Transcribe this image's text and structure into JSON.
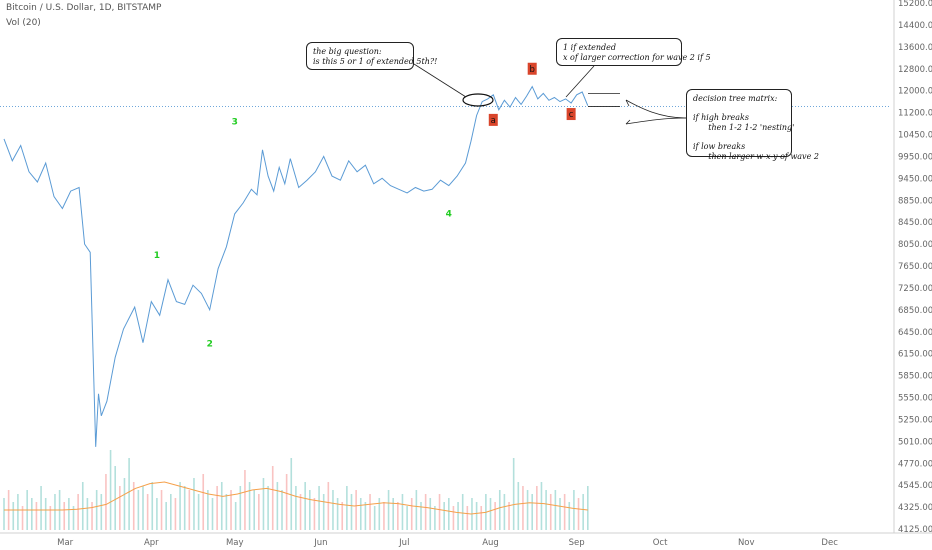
{
  "header": {
    "symbol_line": "Bitcoin / U.S. Dollar, 1D, BITSTAMP",
    "volume_line": "Vol (20)"
  },
  "annotations": {
    "big_question": "the big question:\nis this 5 or 1 of extended 5th?!",
    "extended_note": "1 if extended\nx of larger correction for wave 2 if 5",
    "decision_tree": "decision tree matrix:\n\nif high breaks\n      then 1-2 1-2 'nesting'\n\nif low breaks\n      then larger w-x-y of wave 2"
  },
  "colors": {
    "price_line": "#5b9bd5",
    "wave_label": "#22cc22",
    "abc_box": "#d9452b",
    "vol_up": "#26a69a",
    "vol_down": "#ef5350",
    "vol_ma": "#f5a04a",
    "axis_text": "#666666"
  },
  "chart_data": {
    "type": "line",
    "title": "Bitcoin / U.S. Dollar, 1D, BITSTAMP",
    "yaxis_ticks": [
      15200,
      14400,
      13600,
      12800,
      12000,
      11200,
      10450,
      9950,
      9450,
      8850,
      8450,
      8050,
      7650,
      7250,
      6850,
      6450,
      6150,
      5850,
      5550,
      5250,
      5010,
      4770,
      4545,
      4325,
      4125
    ],
    "xaxis_labels": [
      "Mar",
      "Apr",
      "May",
      "Jun",
      "Jul",
      "Aug",
      "Sep",
      "Oct",
      "Nov",
      "Dec"
    ],
    "price_series": {
      "name": "BTCUSD",
      "points": [
        [
          "2019-02-07",
          10350
        ],
        [
          "2019-02-10",
          9850
        ],
        [
          "2019-02-13",
          10200
        ],
        [
          "2019-02-16",
          9600
        ],
        [
          "2019-02-19",
          9350
        ],
        [
          "2019-02-22",
          9800
        ],
        [
          "2019-02-25",
          8950
        ],
        [
          "2019-02-28",
          8700
        ],
        [
          "2019-03-03",
          9100
        ],
        [
          "2019-03-06",
          9200
        ],
        [
          "2019-03-08",
          8050
        ],
        [
          "2019-03-10",
          7900
        ],
        [
          "2019-03-12",
          4950
        ],
        [
          "2019-03-13",
          5600
        ],
        [
          "2019-03-14",
          5300
        ],
        [
          "2019-03-16",
          5500
        ],
        [
          "2019-03-19",
          6100
        ],
        [
          "2019-03-22",
          6500
        ],
        [
          "2019-03-26",
          6900
        ],
        [
          "2019-03-29",
          6300
        ],
        [
          "2019-04-01",
          7000
        ],
        [
          "2019-04-04",
          6750
        ],
        [
          "2019-04-07",
          7400
        ],
        [
          "2019-04-10",
          7000
        ],
        [
          "2019-04-13",
          6950
        ],
        [
          "2019-04-16",
          7300
        ],
        [
          "2019-04-19",
          7150
        ],
        [
          "2019-04-22",
          6850
        ],
        [
          "2019-04-25",
          7600
        ],
        [
          "2019-04-28",
          8000
        ],
        [
          "2019-05-01",
          8600
        ],
        [
          "2019-05-04",
          8800
        ],
        [
          "2019-05-07",
          9150
        ],
        [
          "2019-05-09",
          9000
        ],
        [
          "2019-05-11",
          10100
        ],
        [
          "2019-05-13",
          9500
        ],
        [
          "2019-05-15",
          9100
        ],
        [
          "2019-05-17",
          9700
        ],
        [
          "2019-05-19",
          9300
        ],
        [
          "2019-05-21",
          9900
        ],
        [
          "2019-05-24",
          9200
        ],
        [
          "2019-05-27",
          9400
        ],
        [
          "2019-05-30",
          9600
        ],
        [
          "2019-06-02",
          9950
        ],
        [
          "2019-06-05",
          9500
        ],
        [
          "2019-06-08",
          9400
        ],
        [
          "2019-06-11",
          9850
        ],
        [
          "2019-06-14",
          9600
        ],
        [
          "2019-06-17",
          9750
        ],
        [
          "2019-06-20",
          9300
        ],
        [
          "2019-06-23",
          9450
        ],
        [
          "2019-06-26",
          9250
        ],
        [
          "2019-06-29",
          9150
        ],
        [
          "2019-07-02",
          9050
        ],
        [
          "2019-07-05",
          9200
        ],
        [
          "2019-07-08",
          9100
        ],
        [
          "2019-07-11",
          9150
        ],
        [
          "2019-07-14",
          9400
        ],
        [
          "2019-07-17",
          9250
        ],
        [
          "2019-07-20",
          9500
        ],
        [
          "2019-07-23",
          9800
        ],
        [
          "2019-07-25",
          10300
        ],
        [
          "2019-07-27",
          11100
        ],
        [
          "2019-07-29",
          11600
        ],
        [
          "2019-07-31",
          11700
        ],
        [
          "2019-08-02",
          11850
        ],
        [
          "2019-08-04",
          11300
        ],
        [
          "2019-08-06",
          11650
        ],
        [
          "2019-08-08",
          11400
        ],
        [
          "2019-08-10",
          11750
        ],
        [
          "2019-08-12",
          11500
        ],
        [
          "2019-08-14",
          11800
        ],
        [
          "2019-08-16",
          12150
        ],
        [
          "2019-08-18",
          11700
        ],
        [
          "2019-08-20",
          11900
        ],
        [
          "2019-08-22",
          11650
        ],
        [
          "2019-08-24",
          11750
        ],
        [
          "2019-08-26",
          11600
        ],
        [
          "2019-08-28",
          11700
        ],
        [
          "2019-08-30",
          11550
        ],
        [
          "2019-09-01",
          11850
        ],
        [
          "2019-09-03",
          11950
        ],
        [
          "2019-09-05",
          11450
        ]
      ]
    },
    "current_price_level": 11420,
    "decision_levels": [
      11900,
      11420
    ],
    "wave_labels": [
      {
        "label": "1",
        "date": "2019-04-03",
        "price": 7800
      },
      {
        "label": "2",
        "date": "2019-04-22",
        "price": 6250
      },
      {
        "label": "3",
        "date": "2019-05-01",
        "price": 10800
      },
      {
        "label": "4",
        "date": "2019-07-17",
        "price": 8550
      }
    ],
    "abc_labels": [
      {
        "label": "a",
        "date": "2019-08-02",
        "price": 10950
      },
      {
        "label": "b",
        "date": "2019-08-16",
        "price": 12800
      },
      {
        "label": "c",
        "date": "2019-08-30",
        "price": 11150
      }
    ],
    "volume_series": {
      "name": "Vol (20)",
      "values": [
        0.4,
        0.5,
        0.35,
        0.45,
        0.3,
        0.5,
        0.4,
        0.35,
        0.55,
        0.4,
        0.3,
        0.45,
        0.5,
        0.35,
        0.4,
        0.3,
        0.45,
        0.6,
        0.4,
        0.35,
        0.5,
        0.45,
        0.7,
        1.0,
        0.8,
        0.55,
        0.65,
        0.9,
        0.6,
        0.5,
        0.55,
        0.45,
        0.6,
        0.4,
        0.5,
        0.35,
        0.45,
        0.4,
        0.6,
        0.55,
        0.5,
        0.65,
        0.45,
        0.7,
        0.5,
        0.4,
        0.55,
        0.6,
        0.45,
        0.5,
        0.35,
        0.55,
        0.75,
        0.6,
        0.5,
        0.45,
        0.65,
        0.55,
        0.8,
        0.6,
        0.5,
        0.7,
        0.9,
        0.55,
        0.45,
        0.6,
        0.5,
        0.4,
        0.55,
        0.45,
        0.6,
        0.5,
        0.4,
        0.35,
        0.55,
        0.45,
        0.5,
        0.4,
        0.35,
        0.45,
        0.3,
        0.4,
        0.35,
        0.5,
        0.4,
        0.35,
        0.45,
        0.3,
        0.4,
        0.5,
        0.35,
        0.45,
        0.4,
        0.3,
        0.45,
        0.35,
        0.4,
        0.3,
        0.35,
        0.45,
        0.3,
        0.4,
        0.35,
        0.3,
        0.45,
        0.4,
        0.35,
        0.5,
        0.45,
        0.35,
        0.9,
        0.6,
        0.55,
        0.5,
        0.45,
        0.55,
        0.6,
        0.5,
        0.45,
        0.5,
        0.4,
        0.45,
        0.35,
        0.5,
        0.4,
        0.45,
        0.55
      ]
    },
    "volume_ma_levels": [
      0.25,
      0.25,
      0.25,
      0.25,
      0.25,
      0.26,
      0.28,
      0.32,
      0.42,
      0.52,
      0.58,
      0.6,
      0.55,
      0.5,
      0.45,
      0.42,
      0.45,
      0.5,
      0.52,
      0.48,
      0.42,
      0.38,
      0.35,
      0.32,
      0.3,
      0.32,
      0.34,
      0.33,
      0.3,
      0.28,
      0.25,
      0.22,
      0.2,
      0.22,
      0.28,
      0.32,
      0.34,
      0.33,
      0.3,
      0.27,
      0.25
    ]
  }
}
